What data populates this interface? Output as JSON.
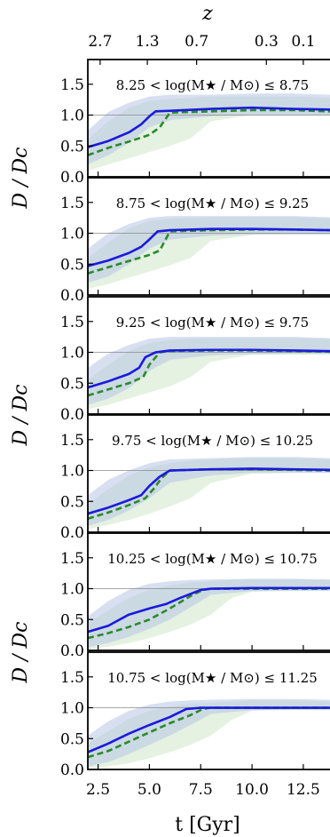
{
  "figure": {
    "top_axis_label": "z",
    "x_axis_label": "t [Gyr]",
    "y_axis_label": "D / Dc"
  },
  "colors": {
    "solid_line": "#1a1adb",
    "dashed_line": "#2a8a2a",
    "solid_band": "#b7c4e6",
    "dashed_band": "#cfe6c8",
    "reference_line": "#8a8a8a"
  },
  "chart_data": {
    "type": "line",
    "xlabel": "t [Gyr]",
    "ylabel": "D/Dc",
    "xlim": [
      2.0,
      13.8
    ],
    "ylim": [
      0.0,
      1.9
    ],
    "x_ticks": [
      2.5,
      5.0,
      7.5,
      10.0,
      12.5
    ],
    "x_tick_labels": [
      "2.5",
      "5.0",
      "7.5",
      "10.0",
      "12.5"
    ],
    "y_ticks": [
      0.0,
      0.5,
      1.0,
      1.5
    ],
    "y_tick_labels": [
      "0.0",
      "0.5",
      "1.0",
      "1.5"
    ],
    "top_axis": {
      "label": "z",
      "ticks_t": [
        2.6,
        4.9,
        7.3,
        10.7,
        12.5
      ],
      "tick_labels": [
        "2.7",
        "1.3",
        "0.7",
        "0.3",
        "0.1"
      ]
    },
    "reference_line_y": 1.0,
    "panels": [
      {
        "label": "8.25 < log(M★ / M⊙) ≤ 8.75",
        "solid": {
          "x": [
            2.0,
            3.0,
            4.0,
            4.6,
            5.0,
            5.3,
            6.0,
            8.0,
            10.0,
            12.0,
            13.8
          ],
          "y": [
            0.48,
            0.58,
            0.72,
            0.85,
            0.98,
            1.06,
            1.07,
            1.1,
            1.12,
            1.1,
            1.09
          ]
        },
        "dashed": {
          "x": [
            2.0,
            3.0,
            4.0,
            5.0,
            5.5,
            6.0,
            8.0,
            10.0,
            12.0,
            13.8
          ],
          "y": [
            0.35,
            0.47,
            0.57,
            0.68,
            0.8,
            1.04,
            1.06,
            1.08,
            1.08,
            1.06
          ]
        },
        "solid_band": {
          "x": [
            2.0,
            3.0,
            4.0,
            5.0,
            6.0,
            8.0,
            10.0,
            12.0,
            13.8
          ],
          "lower": [
            0.2,
            0.35,
            0.55,
            0.8,
            0.92,
            0.98,
            1.0,
            1.0,
            1.0
          ],
          "upper": [
            0.75,
            1.05,
            1.2,
            1.3,
            1.33,
            1.33,
            1.35,
            1.35,
            1.33
          ]
        },
        "dashed_band": {
          "x": [
            2.0,
            3.0,
            4.0,
            5.0,
            6.0,
            7.0,
            8.0,
            10.0,
            12.0,
            13.8
          ],
          "lower": [
            0.1,
            0.2,
            0.3,
            0.4,
            0.5,
            0.62,
            0.9,
            1.0,
            1.0,
            1.0
          ],
          "upper": [
            0.6,
            0.9,
            1.12,
            1.23,
            1.26,
            1.28,
            1.3,
            1.3,
            1.3,
            1.28
          ]
        }
      },
      {
        "label": "8.75 < log(M★ / M⊙) ≤ 9.25",
        "solid": {
          "x": [
            2.0,
            3.0,
            4.0,
            4.6,
            5.0,
            5.4,
            6.0,
            8.0,
            10.0,
            12.0,
            13.8
          ],
          "y": [
            0.47,
            0.56,
            0.68,
            0.78,
            0.9,
            1.03,
            1.05,
            1.07,
            1.07,
            1.06,
            1.05
          ]
        },
        "dashed": {
          "x": [
            2.0,
            3.0,
            4.0,
            5.0,
            5.5,
            6.0,
            8.0,
            10.0,
            12.0,
            13.8
          ],
          "y": [
            0.35,
            0.45,
            0.55,
            0.65,
            0.72,
            1.03,
            1.05,
            1.06,
            1.06,
            1.05
          ]
        },
        "solid_band": {
          "x": [
            2.0,
            3.0,
            4.0,
            5.0,
            6.0,
            8.0,
            10.0,
            12.0,
            13.8
          ],
          "lower": [
            0.2,
            0.3,
            0.5,
            0.75,
            0.9,
            0.96,
            0.98,
            0.98,
            0.98
          ],
          "upper": [
            0.75,
            1.0,
            1.15,
            1.25,
            1.28,
            1.28,
            1.28,
            1.28,
            1.26
          ]
        },
        "dashed_band": {
          "x": [
            2.0,
            3.0,
            4.0,
            5.0,
            6.0,
            7.0,
            8.0,
            10.0,
            12.0,
            13.8
          ],
          "lower": [
            0.1,
            0.18,
            0.28,
            0.38,
            0.48,
            0.6,
            0.88,
            0.97,
            0.98,
            0.98
          ],
          "upper": [
            0.6,
            0.85,
            1.08,
            1.2,
            1.24,
            1.25,
            1.26,
            1.26,
            1.26,
            1.24
          ]
        }
      },
      {
        "label": "9.25 < log(M★ / M⊙) ≤ 9.75",
        "solid": {
          "x": [
            2.0,
            3.0,
            4.0,
            4.5,
            4.8,
            5.3,
            6.0,
            8.0,
            10.0,
            12.0,
            13.8
          ],
          "y": [
            0.43,
            0.53,
            0.65,
            0.75,
            0.92,
            1.0,
            1.03,
            1.04,
            1.04,
            1.03,
            1.02
          ]
        },
        "dashed": {
          "x": [
            2.0,
            3.0,
            4.0,
            4.7,
            5.0,
            5.5,
            6.0,
            8.0,
            10.0,
            12.0,
            13.8
          ],
          "y": [
            0.3,
            0.4,
            0.5,
            0.6,
            0.8,
            1.0,
            1.02,
            1.03,
            1.03,
            1.02,
            1.01
          ]
        },
        "solid_band": {
          "x": [
            2.0,
            3.0,
            4.0,
            5.0,
            6.0,
            8.0,
            10.0,
            12.0,
            13.8
          ],
          "lower": [
            0.15,
            0.25,
            0.42,
            0.7,
            0.88,
            0.95,
            0.97,
            0.97,
            0.97
          ],
          "upper": [
            0.75,
            0.98,
            1.12,
            1.22,
            1.25,
            1.25,
            1.25,
            1.25,
            1.23
          ]
        },
        "dashed_band": {
          "x": [
            2.0,
            3.0,
            4.0,
            5.0,
            6.0,
            7.0,
            8.0,
            10.0,
            12.0,
            13.8
          ],
          "lower": [
            0.08,
            0.15,
            0.25,
            0.35,
            0.45,
            0.6,
            0.85,
            0.96,
            0.97,
            0.97
          ],
          "upper": [
            0.55,
            0.8,
            1.02,
            1.15,
            1.2,
            1.22,
            1.23,
            1.23,
            1.23,
            1.21
          ]
        }
      },
      {
        "label": "9.75 < log(M★ / M⊙) ≤ 10.25",
        "solid": {
          "x": [
            2.0,
            3.0,
            4.0,
            4.6,
            5.0,
            5.5,
            6.0,
            8.0,
            10.0,
            12.0,
            13.8
          ],
          "y": [
            0.3,
            0.4,
            0.52,
            0.6,
            0.75,
            0.9,
            1.0,
            1.02,
            1.03,
            1.02,
            1.01
          ]
        },
        "dashed": {
          "x": [
            2.0,
            3.0,
            4.0,
            4.8,
            5.2,
            5.6,
            6.0,
            8.0,
            10.0,
            12.0,
            13.8
          ],
          "y": [
            0.22,
            0.32,
            0.44,
            0.55,
            0.7,
            0.88,
            1.0,
            1.02,
            1.02,
            1.01,
            1.0
          ]
        },
        "solid_band": {
          "x": [
            2.0,
            3.0,
            4.0,
            5.0,
            6.0,
            8.0,
            10.0,
            12.0,
            13.8
          ],
          "lower": [
            0.1,
            0.2,
            0.35,
            0.55,
            0.8,
            0.92,
            0.96,
            0.96,
            0.96
          ],
          "upper": [
            0.6,
            0.85,
            1.0,
            1.12,
            1.18,
            1.2,
            1.22,
            1.22,
            1.2
          ]
        },
        "dashed_band": {
          "x": [
            2.0,
            3.0,
            4.0,
            5.0,
            6.0,
            7.0,
            8.0,
            10.0,
            12.0,
            13.8
          ],
          "lower": [
            0.05,
            0.12,
            0.2,
            0.3,
            0.42,
            0.55,
            0.8,
            0.95,
            0.96,
            0.96
          ],
          "upper": [
            0.45,
            0.7,
            0.92,
            1.05,
            1.12,
            1.16,
            1.18,
            1.2,
            1.2,
            1.18
          ]
        }
      },
      {
        "label": "10.25 < log(M★ / M⊙) ≤ 10.75",
        "solid": {
          "x": [
            2.0,
            3.0,
            4.0,
            5.0,
            5.8,
            6.5,
            7.5,
            8.0,
            10.0,
            12.0,
            13.8
          ],
          "y": [
            0.3,
            0.4,
            0.58,
            0.68,
            0.75,
            0.85,
            0.98,
            1.0,
            1.01,
            1.01,
            1.01
          ]
        },
        "dashed": {
          "x": [
            2.0,
            3.0,
            4.0,
            5.0,
            6.0,
            7.0,
            7.6,
            8.0,
            10.0,
            12.0,
            13.8
          ],
          "y": [
            0.2,
            0.28,
            0.38,
            0.5,
            0.68,
            0.88,
            0.98,
            1.0,
            1.0,
            1.0,
            1.0
          ]
        },
        "solid_band": {
          "x": [
            2.0,
            3.0,
            4.0,
            5.0,
            6.0,
            7.0,
            8.0,
            10.0,
            12.0,
            13.8
          ],
          "lower": [
            0.05,
            0.12,
            0.22,
            0.35,
            0.5,
            0.7,
            0.9,
            0.96,
            0.97,
            0.97
          ],
          "upper": [
            0.55,
            0.8,
            0.98,
            1.08,
            1.12,
            1.14,
            1.15,
            1.16,
            1.16,
            1.15
          ]
        },
        "dashed_band": {
          "x": [
            2.0,
            3.0,
            4.0,
            5.0,
            6.0,
            7.0,
            8.0,
            9.0,
            10.0,
            12.0,
            13.8
          ],
          "lower": [
            0.02,
            0.06,
            0.12,
            0.2,
            0.3,
            0.42,
            0.58,
            0.85,
            0.95,
            0.96,
            0.96
          ],
          "upper": [
            0.45,
            0.65,
            0.85,
            0.98,
            1.05,
            1.1,
            1.12,
            1.14,
            1.15,
            1.15,
            1.14
          ]
        }
      },
      {
        "label": "10.75 < log(M★ / M⊙) ≤ 11.25",
        "solid": {
          "x": [
            2.0,
            3.0,
            4.0,
            5.0,
            6.0,
            6.8,
            7.5,
            8.0,
            10.0,
            12.0,
            13.8
          ],
          "y": [
            0.28,
            0.42,
            0.58,
            0.72,
            0.85,
            0.98,
            1.0,
            1.0,
            1.0,
            1.0,
            1.0
          ]
        },
        "dashed": {
          "x": [
            2.0,
            3.0,
            4.0,
            5.0,
            6.0,
            7.0,
            7.6,
            8.0,
            10.0,
            12.0,
            13.8
          ],
          "y": [
            0.2,
            0.3,
            0.45,
            0.6,
            0.75,
            0.88,
            0.98,
            1.0,
            1.0,
            1.0,
            1.0
          ]
        },
        "solid_band": {
          "x": [
            2.0,
            3.0,
            4.0,
            5.0,
            6.0,
            7.0,
            8.0,
            10.0,
            12.0,
            13.8
          ],
          "lower": [
            0.05,
            0.12,
            0.25,
            0.4,
            0.55,
            0.72,
            0.9,
            0.96,
            0.97,
            0.97
          ],
          "upper": [
            0.55,
            0.78,
            0.95,
            1.05,
            1.1,
            1.12,
            1.13,
            1.14,
            1.14,
            1.13
          ]
        },
        "dashed_band": {
          "x": [
            2.0,
            3.0,
            4.0,
            5.0,
            6.0,
            7.0,
            8.0,
            9.0,
            10.0,
            12.0,
            13.8
          ],
          "lower": [
            0.02,
            0.05,
            0.1,
            0.18,
            0.28,
            0.4,
            0.55,
            0.8,
            0.95,
            0.96,
            0.96
          ],
          "upper": [
            0.42,
            0.62,
            0.82,
            0.95,
            1.02,
            1.06,
            1.08,
            1.1,
            1.12,
            1.12,
            1.1
          ]
        }
      }
    ]
  }
}
